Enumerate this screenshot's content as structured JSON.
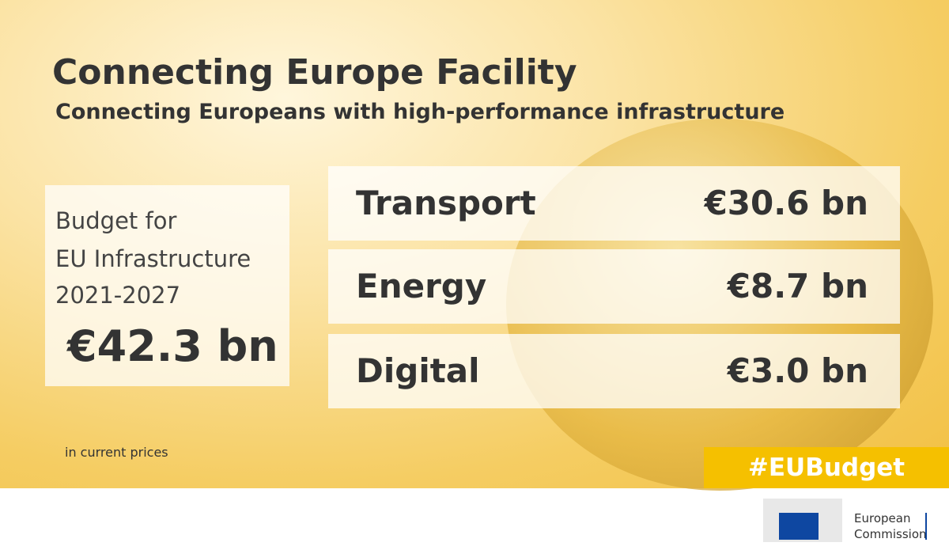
{
  "header": {
    "title": "Connecting Europe Facility",
    "subtitle": "Connecting Europeans with high-performance infrastructure"
  },
  "budget": {
    "lines": [
      "Budget for",
      "EU Infrastructure",
      "2021-2027"
    ],
    "total": "€42.3 bn"
  },
  "items": [
    {
      "label": "Transport",
      "amount": "€30.6 bn"
    },
    {
      "label": "Energy",
      "amount": "€8.7 bn"
    },
    {
      "label": "Digital",
      "amount": "€3.0 bn"
    }
  ],
  "note": "in current prices",
  "hashtag": "#EUBudget",
  "logo": {
    "lines": [
      "European",
      "Commission"
    ]
  }
}
